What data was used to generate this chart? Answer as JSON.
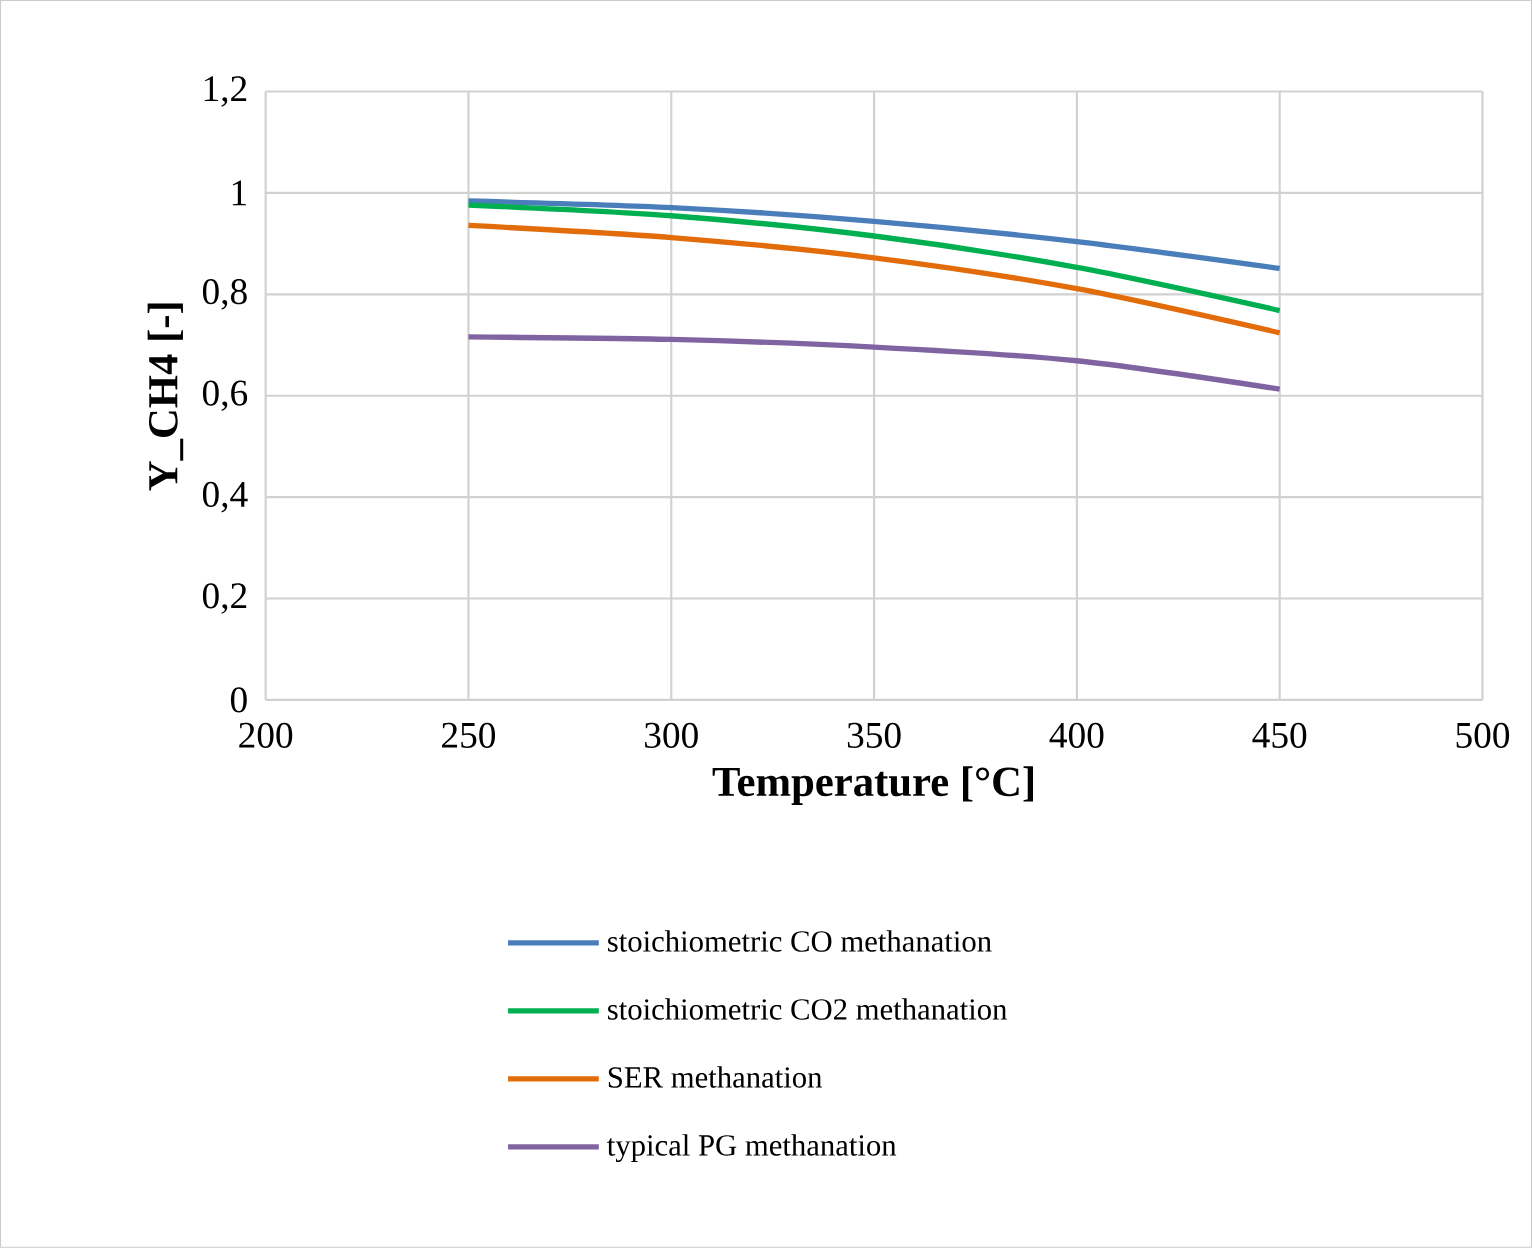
{
  "chart_data": {
    "type": "line",
    "xlabel": "Temperature [°C]",
    "ylabel": "Y_CH4 [-]",
    "x": [
      250,
      300,
      350,
      400,
      450
    ],
    "series": [
      {
        "name": "stoichiometric CO methanation",
        "color": "#4a7ebb",
        "values": [
          0.984,
          0.971,
          0.944,
          0.904,
          0.851
        ]
      },
      {
        "name": "stoichiometric CO2 methanation",
        "color": "#00b050",
        "values": [
          0.976,
          0.955,
          0.915,
          0.853,
          0.768
        ]
      },
      {
        "name": "SER methanation",
        "color": "#e36c0a",
        "values": [
          0.936,
          0.912,
          0.872,
          0.811,
          0.724
        ]
      },
      {
        "name": "typical PG methanation",
        "color": "#8064a2",
        "values": [
          0.716,
          0.711,
          0.696,
          0.669,
          0.613
        ]
      }
    ],
    "xlim": [
      200,
      500
    ],
    "xticks": [
      200,
      250,
      300,
      350,
      400,
      450,
      500
    ],
    "ylim": [
      0,
      1.2
    ],
    "yticks": [
      0,
      {
        "value": 0.2,
        "label": "0,2"
      },
      {
        "value": 0.4,
        "label": "0,4"
      },
      {
        "value": 0.6,
        "label": "0,6"
      },
      {
        "value": 0.8,
        "label": "0,8"
      },
      1,
      {
        "value": 1.2,
        "label": "1,2"
      }
    ],
    "grid": true,
    "legend": "bottom",
    "marker": "none",
    "line_style": "solid"
  }
}
